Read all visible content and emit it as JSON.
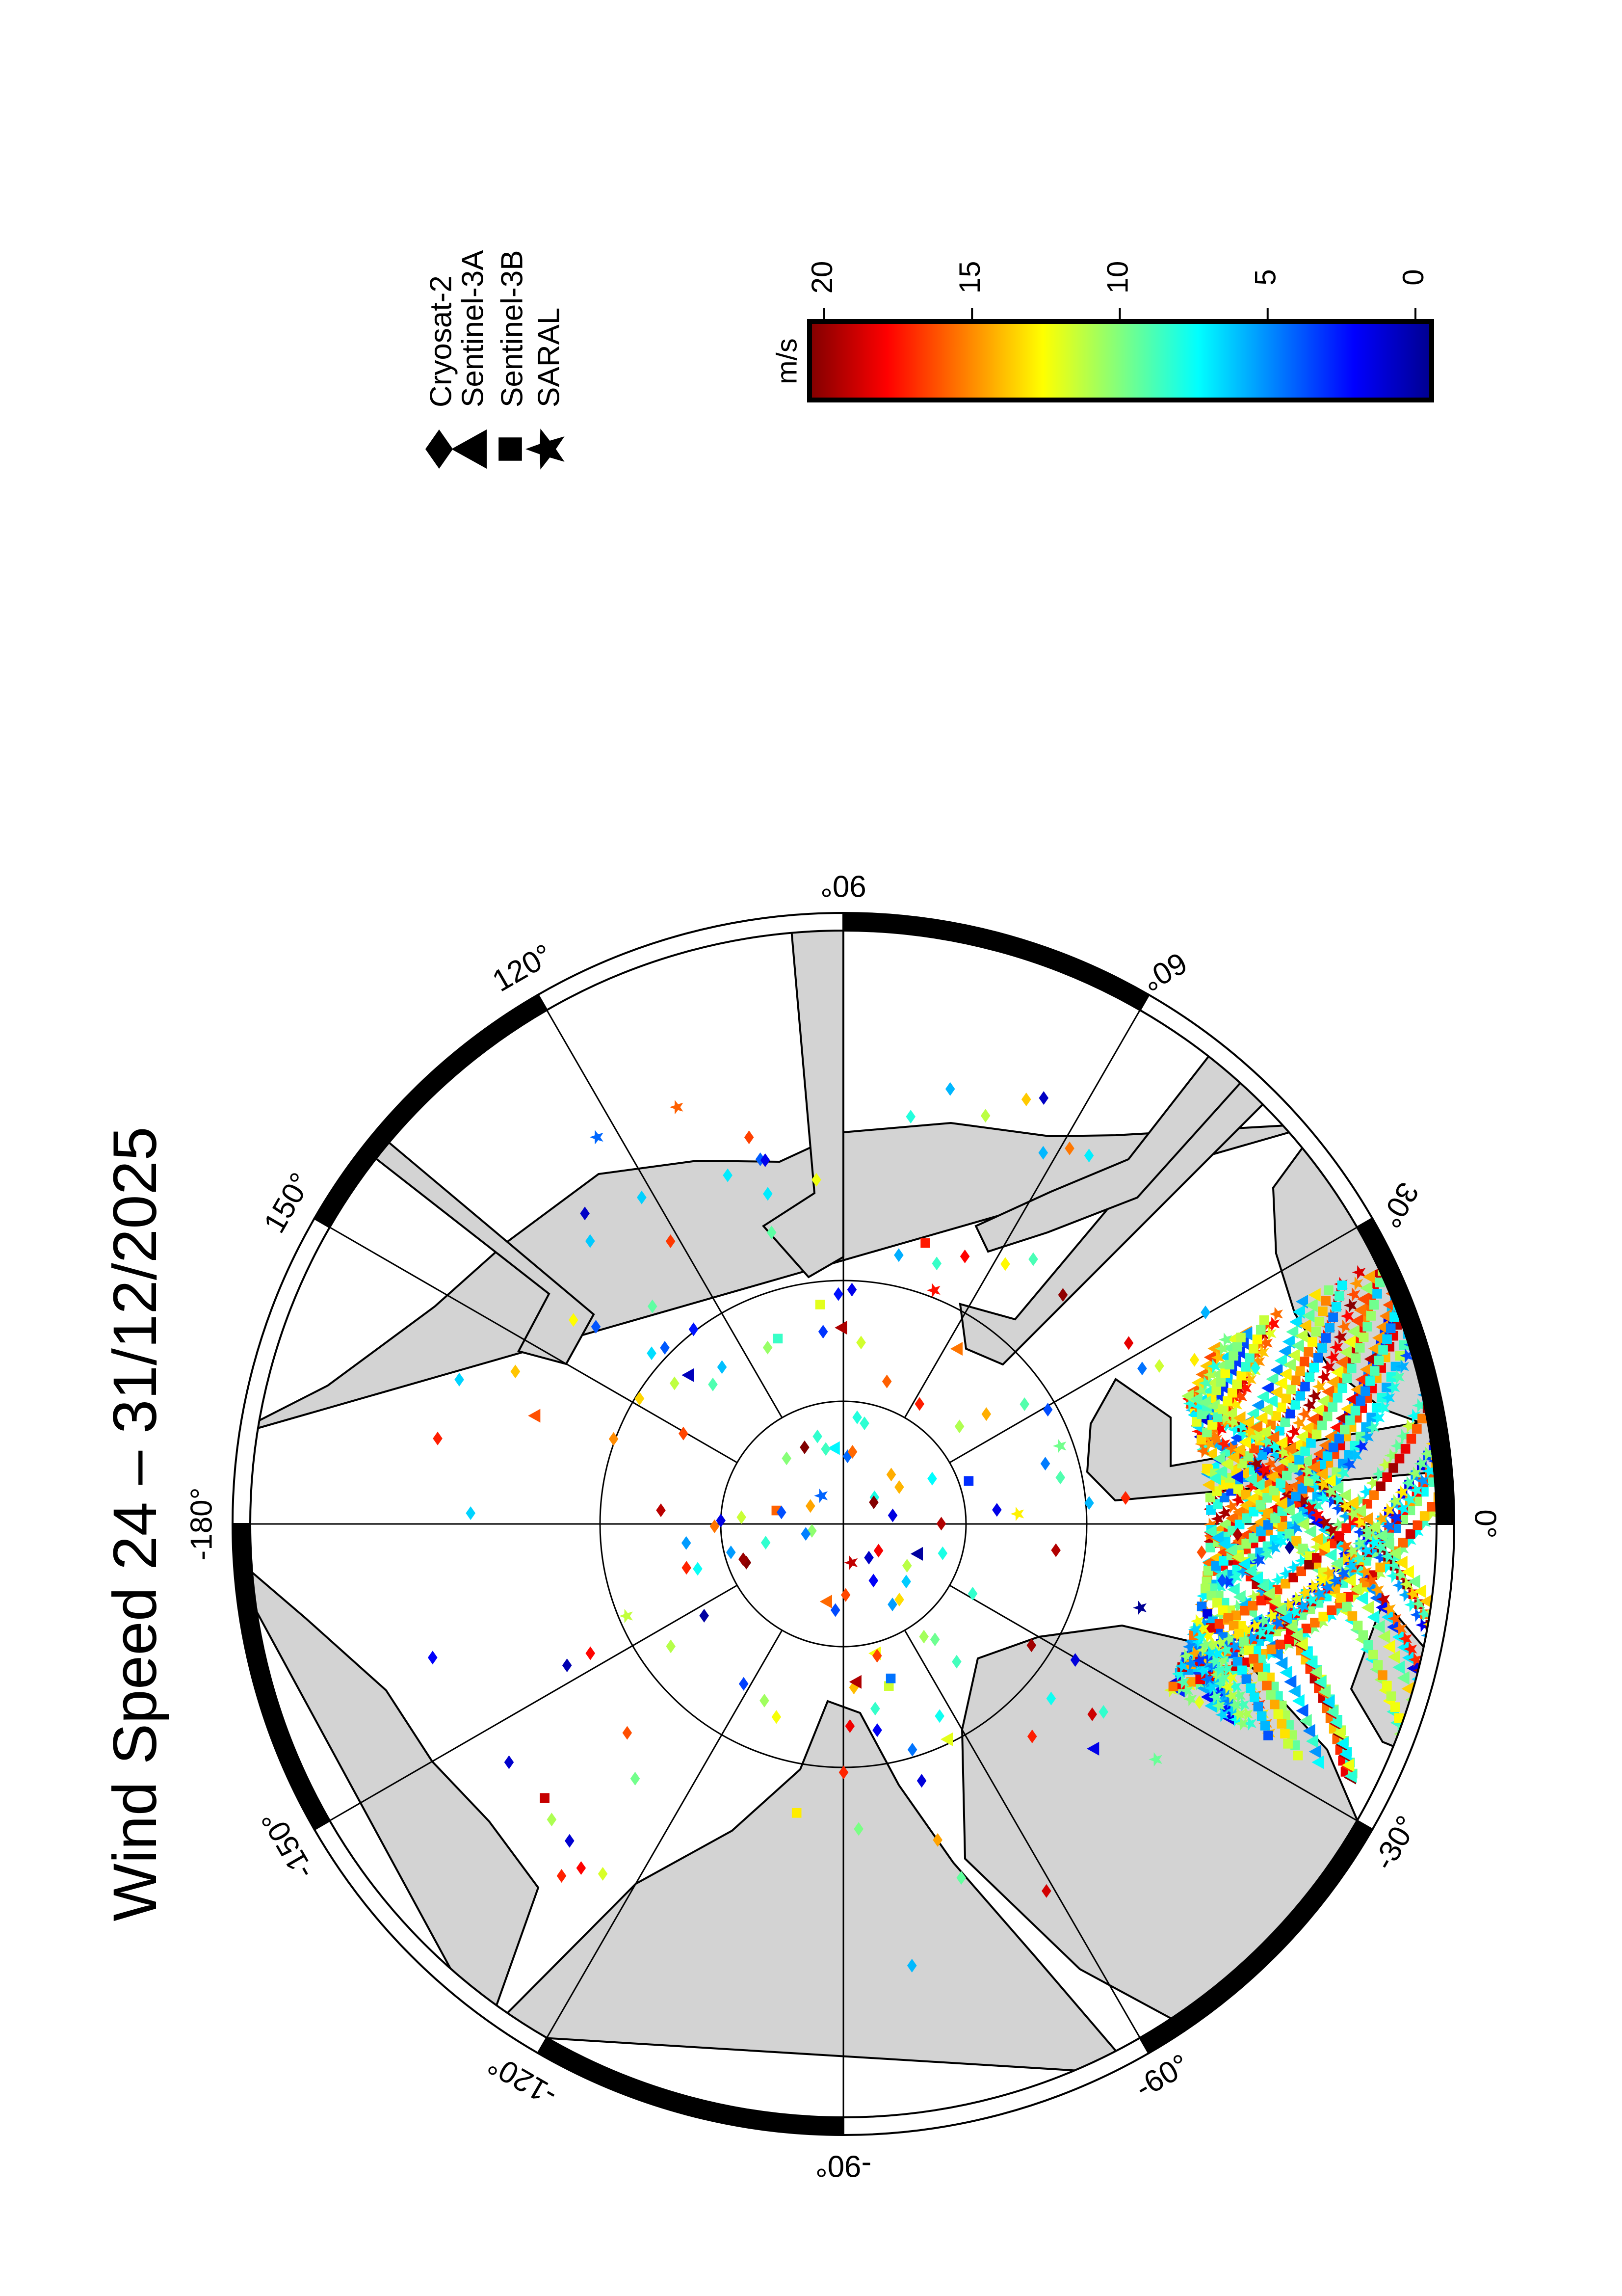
{
  "title": "Wind Speed 24 – 31/12/2025",
  "legend": {
    "items": [
      {
        "label": "Cryosat-2",
        "symbol": "diamond"
      },
      {
        "label": "Sentinel-3A",
        "symbol": "triangle-left"
      },
      {
        "label": "Sentinel-3B",
        "symbol": "square"
      },
      {
        "label": "SARAL",
        "symbol": "star"
      }
    ]
  },
  "colorbar": {
    "unit": "m/s",
    "min": 0,
    "max": 20,
    "direction": "max-left",
    "colormap": "jet",
    "ticks": [
      "20",
      "15",
      "10",
      "5",
      "0"
    ]
  },
  "map": {
    "projection": "polar stereographic (north pole)",
    "rotation": "0° meridian points right",
    "land_color": "#d3d3d3",
    "ocean_color": "#ffffff",
    "latitude_circles": [
      80,
      85
    ],
    "longitude_labels": [
      "0°",
      "30°",
      "60°",
      "90°",
      "120°",
      "150°",
      "-180°",
      "-150°",
      "-120°",
      "-90°",
      "-60°",
      "-30°"
    ],
    "observation_region": "Greenland / Norwegian / Barents Seas (dense), sparse across central Arctic"
  }
}
